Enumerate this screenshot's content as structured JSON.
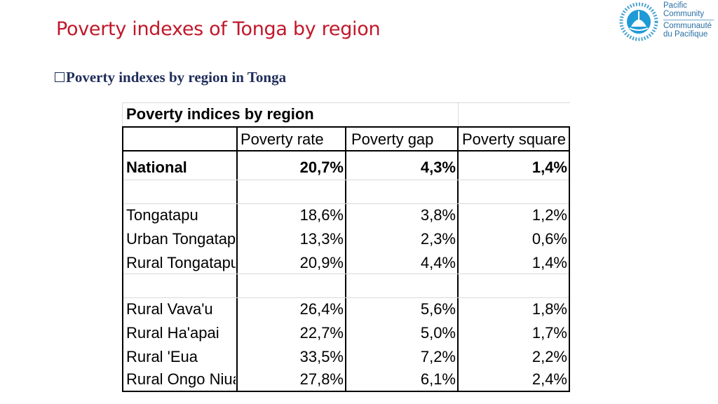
{
  "slide": {
    "title": "Poverty indexes of Tonga by region",
    "subtitle": "Poverty indexes by region in Tonga",
    "title_color": "#c0182a",
    "subtitle_color": "#1f2d5a"
  },
  "logo": {
    "line1": "Pacific",
    "line2": "Community",
    "line3": "Communauté",
    "line4": "du Pacifique",
    "color": "#2a6fa3",
    "icon": "pacific-community-logo-icon"
  },
  "table": {
    "caption": "Poverty indices by region",
    "headers": [
      "",
      "Poverty rate",
      "Poverty gap",
      "Poverty square"
    ],
    "national": {
      "label": "National",
      "rate": "20,7%",
      "gap": "4,3%",
      "square": "1,4%"
    },
    "tongatapu": [
      {
        "label": "Tongatapu",
        "rate": "18,6%",
        "gap": "3,8%",
        "square": "1,2%"
      },
      {
        "label": "Urban Tongatapu",
        "rate": "13,3%",
        "gap": "2,3%",
        "square": "0,6%"
      },
      {
        "label": "Rural Tongatapu",
        "rate": "20,9%",
        "gap": "4,4%",
        "square": "1,4%"
      }
    ],
    "outer": [
      {
        "label": "Rural Vava'u",
        "rate": "26,4%",
        "gap": "5,6%",
        "square": "1,8%"
      },
      {
        "label": "Rural Ha'apai",
        "rate": "22,7%",
        "gap": "5,0%",
        "square": "1,7%"
      },
      {
        "label": "Rural 'Eua",
        "rate": "33,5%",
        "gap": "7,2%",
        "square": "2,2%"
      },
      {
        "label": "Rural Ongo Niua",
        "rate": "27,8%",
        "gap": "6,1%",
        "square": "2,4%"
      }
    ]
  }
}
